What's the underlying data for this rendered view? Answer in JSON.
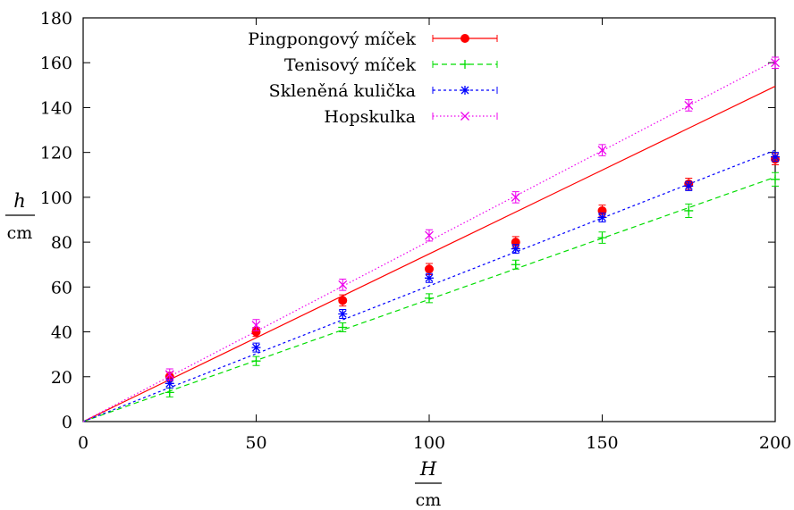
{
  "chart_data": {
    "type": "scatter",
    "xlabel": "H",
    "xunit": "cm",
    "ylabel": "h",
    "yunit": "cm",
    "xlim": [
      0,
      200
    ],
    "ylim": [
      0,
      180
    ],
    "xticks": [
      0,
      50,
      100,
      150,
      200
    ],
    "yticks": [
      0,
      20,
      40,
      60,
      80,
      100,
      120,
      140,
      160,
      180
    ],
    "grid": false,
    "legend_position": "top-left",
    "x": [
      25,
      50,
      75,
      100,
      125,
      150,
      175,
      200
    ],
    "series": [
      {
        "name": "Pingpongový míček",
        "color": "#ff0000",
        "marker": "filled-circle",
        "line_style": "solid",
        "y": [
          20,
          40,
          54,
          68,
          80,
          94,
          106,
          117
        ],
        "err": [
          2,
          2,
          2.5,
          2.5,
          2.5,
          2.5,
          2.5,
          2.5
        ],
        "fit": [
          [
            0,
            0
          ],
          [
            200,
            149.5
          ]
        ]
      },
      {
        "name": "Tenisový míček",
        "color": "#00dd00",
        "marker": "plus",
        "line_style": "dashed",
        "y": [
          13,
          27,
          42,
          55,
          70,
          82,
          94,
          108
        ],
        "err": [
          2,
          2,
          2,
          2,
          2,
          2.5,
          3,
          3
        ],
        "fit": [
          [
            0,
            0
          ],
          [
            200,
            109
          ]
        ]
      },
      {
        "name": "Skleněná kulička",
        "color": "#0000ff",
        "marker": "star",
        "line_style": "dotted",
        "y": [
          17,
          33,
          48,
          64,
          77,
          91,
          105,
          118
        ],
        "err": [
          2,
          2,
          2,
          2,
          2,
          2,
          2,
          2
        ],
        "fit": [
          [
            0,
            0
          ],
          [
            200,
            121
          ]
        ]
      },
      {
        "name": "Hopskulka",
        "color": "#ee00ee",
        "marker": "cross",
        "line_style": "fine-dotted",
        "y": [
          21,
          43,
          61,
          83,
          100,
          121,
          141,
          160
        ],
        "err": [
          2.5,
          2.5,
          2.5,
          2.5,
          2.5,
          2.5,
          2.5,
          2.5
        ],
        "fit": [
          [
            0,
            0
          ],
          [
            200,
            161
          ]
        ]
      }
    ]
  }
}
